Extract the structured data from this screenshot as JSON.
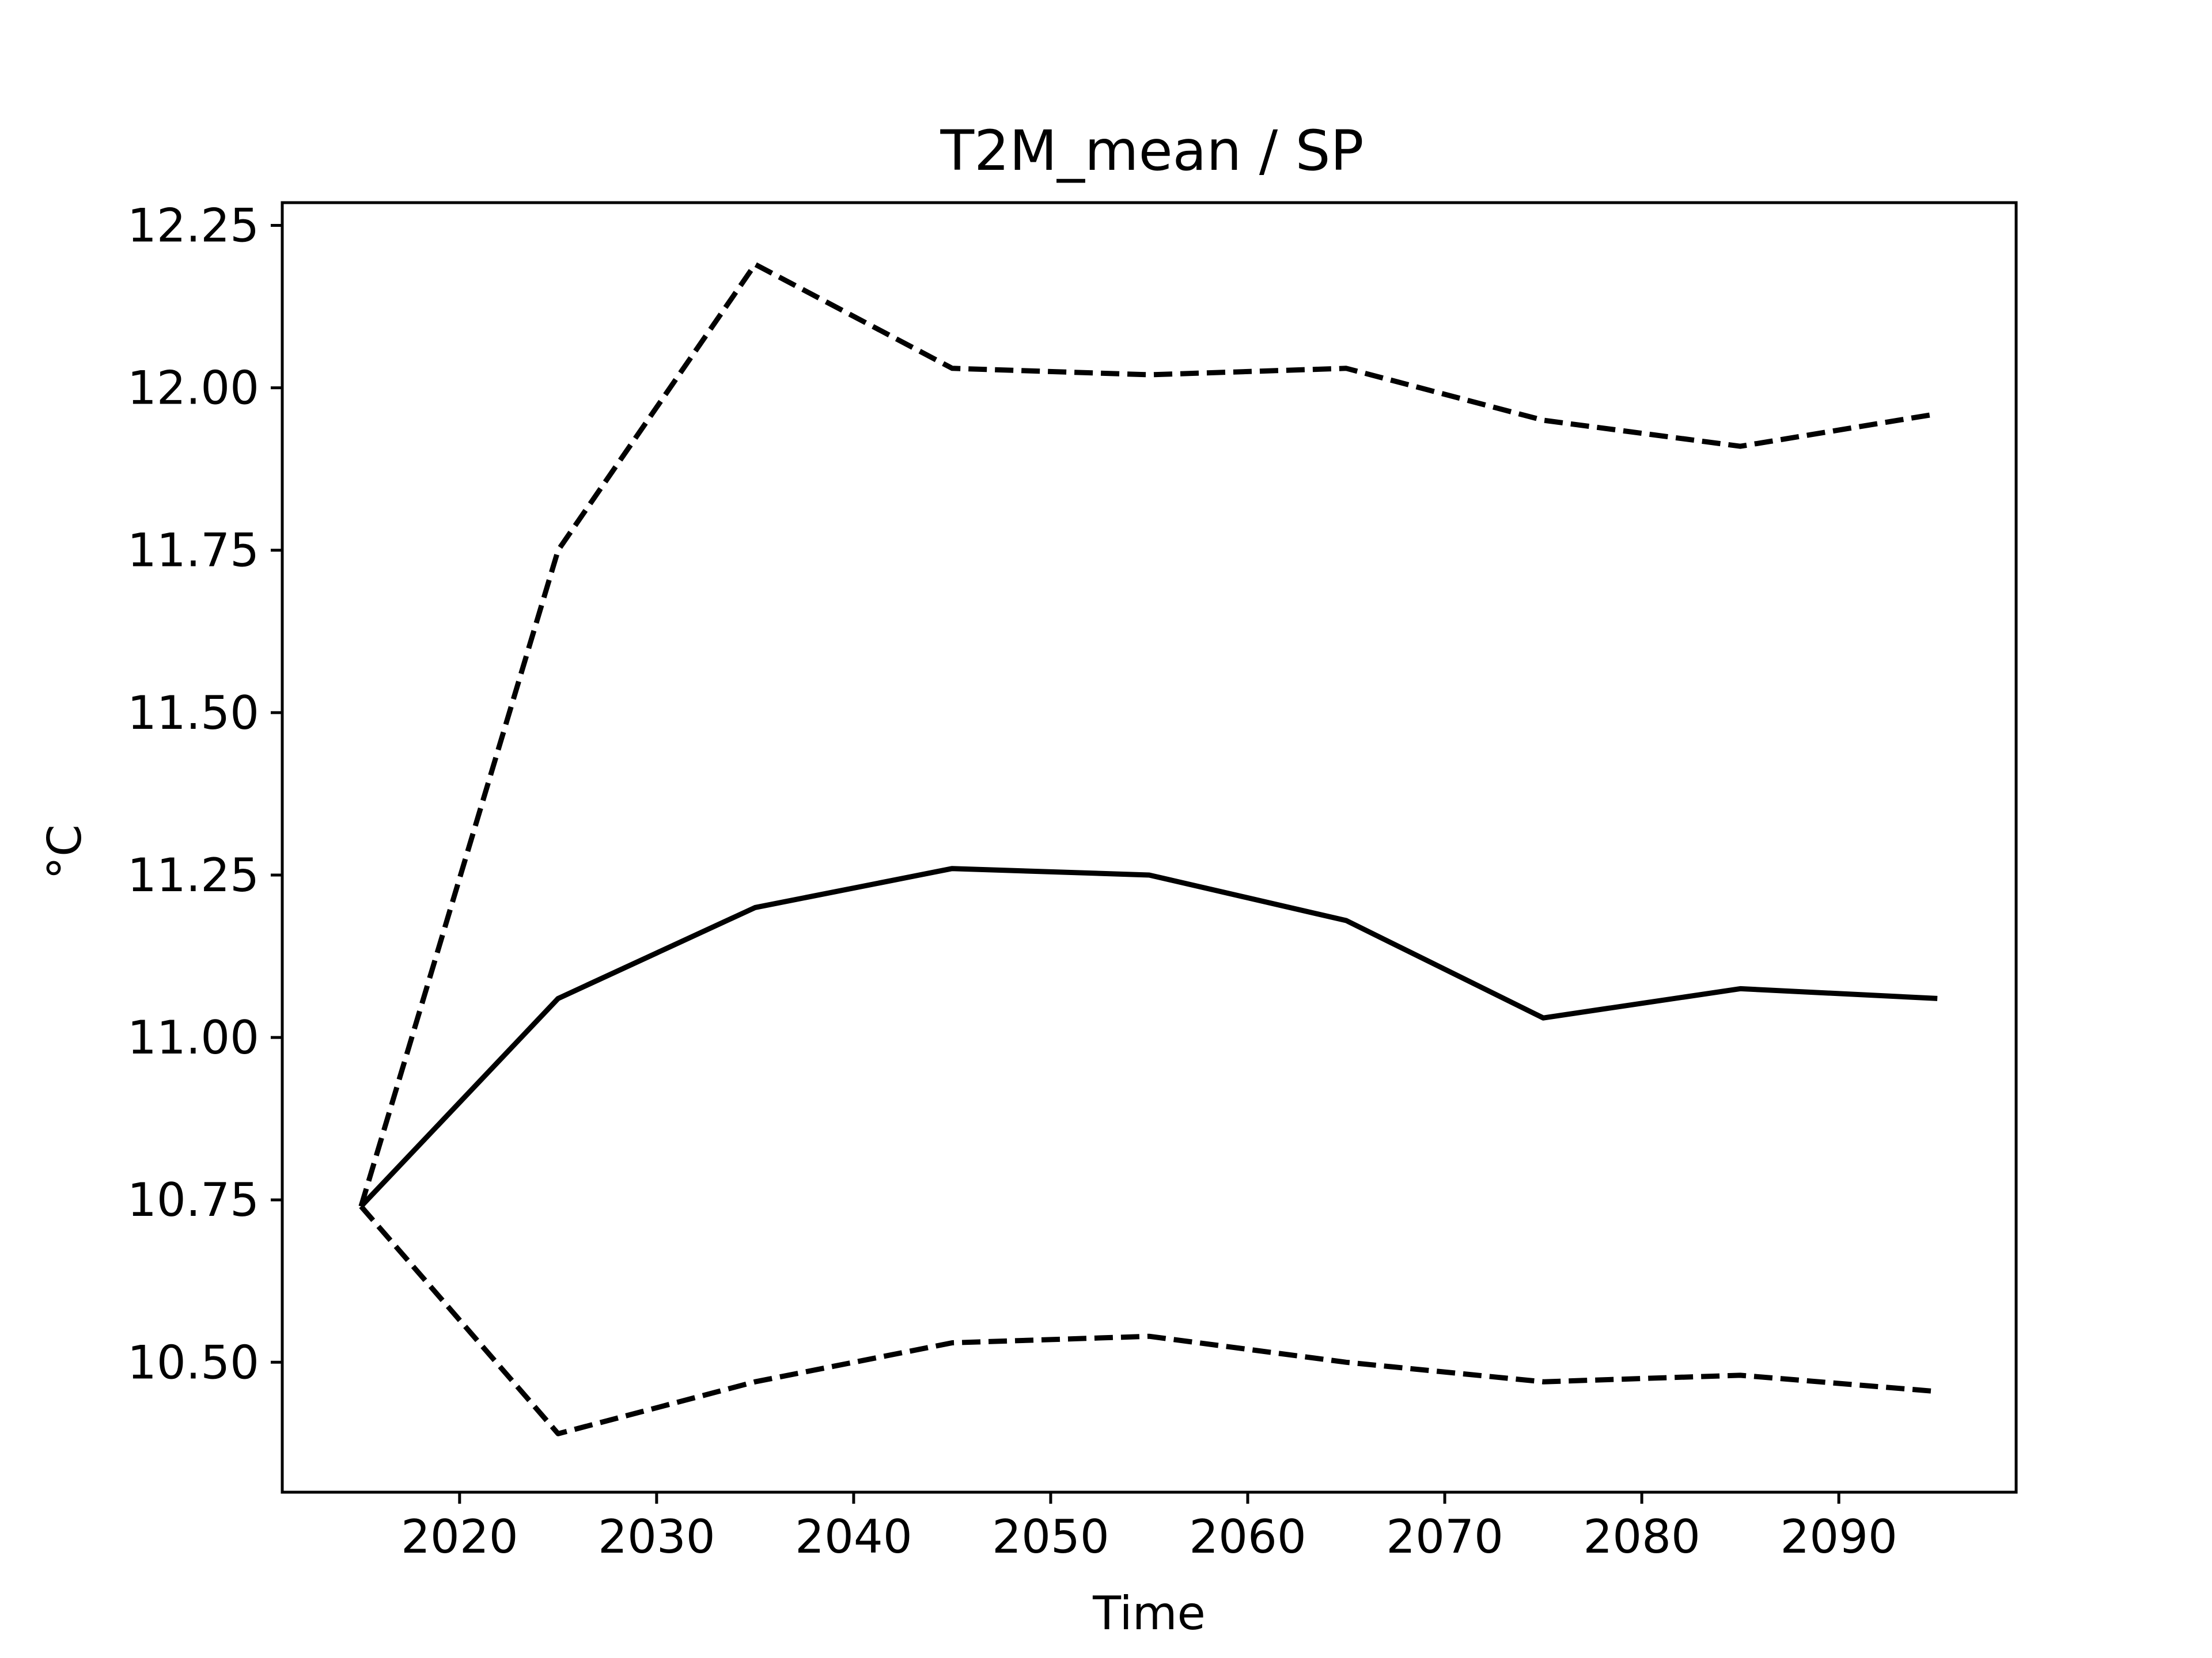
{
  "chart_data": {
    "type": "line",
    "title": "T2M_mean / SP",
    "xlabel": "Time",
    "ylabel": "°C",
    "x": [
      2015,
      2025,
      2035,
      2045,
      2055,
      2065,
      2075,
      2085,
      2095
    ],
    "series": [
      {
        "style": "solid",
        "values": [
          10.74,
          11.06,
          11.2,
          11.26,
          11.25,
          11.18,
          11.03,
          11.075,
          11.06
        ]
      },
      {
        "style": "dashed",
        "values": [
          10.74,
          11.75,
          12.19,
          12.03,
          12.02,
          12.03,
          11.95,
          11.91,
          11.96
        ]
      },
      {
        "style": "dashed",
        "values": [
          10.74,
          10.39,
          10.47,
          10.53,
          10.54,
          10.5,
          10.47,
          10.48,
          10.455
        ]
      }
    ],
    "xlim": [
      2011,
      2099
    ],
    "ylim": [
      10.3,
      12.285
    ],
    "xticks": [
      "2020",
      "2030",
      "2040",
      "2050",
      "2060",
      "2070",
      "2080",
      "2090"
    ],
    "yticks": [
      "10.50",
      "10.75",
      "11.00",
      "11.25",
      "11.50",
      "11.75",
      "12.00",
      "12.25"
    ],
    "line_color": "#000000",
    "grid": false,
    "legend": false
  }
}
